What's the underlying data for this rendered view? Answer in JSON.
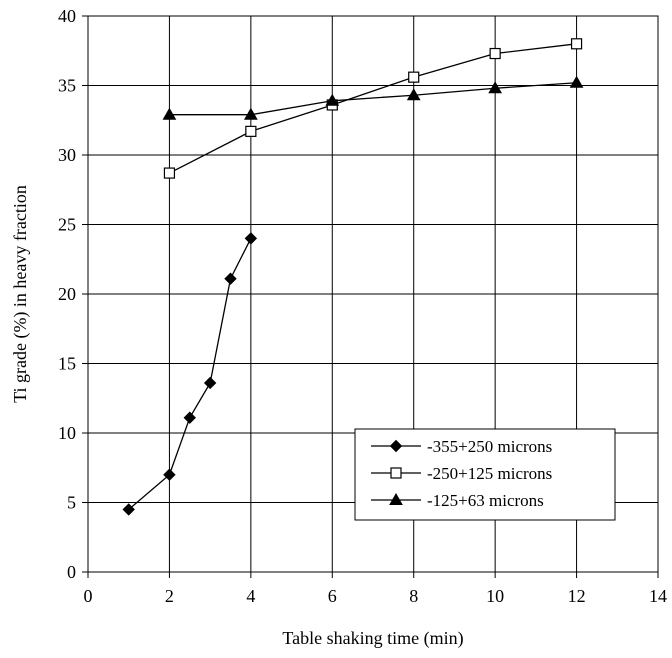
{
  "chart_data": {
    "type": "line",
    "xlabel": "Table shaking time (min)",
    "ylabel": "Ti grade (%) in heavy fraction",
    "xlim": [
      0,
      14
    ],
    "ylim": [
      0,
      40
    ],
    "xticks": [
      0,
      2,
      4,
      6,
      8,
      10,
      12,
      14
    ],
    "yticks": [
      0,
      5,
      10,
      15,
      20,
      25,
      30,
      35,
      40
    ],
    "grid": "vertical and horizontal major gridlines",
    "legend_position": "lower-right",
    "series": [
      {
        "name": "-355+250 microns",
        "marker": "diamond-filled",
        "x": [
          1,
          2,
          2.5,
          3,
          3.5,
          4
        ],
        "y": [
          4.5,
          7.0,
          11.1,
          13.6,
          21.1,
          24.0
        ]
      },
      {
        "name": "-250+125 microns",
        "marker": "square-open",
        "x": [
          2,
          4,
          6,
          8,
          10,
          12
        ],
        "y": [
          28.7,
          31.7,
          33.6,
          35.6,
          37.3,
          38.0
        ]
      },
      {
        "name": "-125+63 microns",
        "marker": "triangle-filled",
        "x": [
          2,
          4,
          6,
          8,
          10,
          12
        ],
        "y": [
          32.9,
          32.9,
          33.9,
          34.3,
          34.8,
          35.2
        ]
      }
    ]
  }
}
